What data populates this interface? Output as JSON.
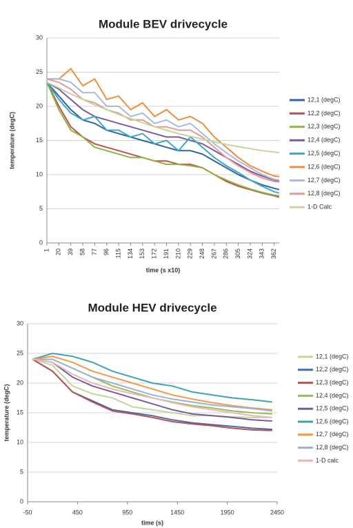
{
  "chart_data": [
    {
      "type": "line",
      "title": "Module BEV drivecycle",
      "x_label": "time (s x10)",
      "y_label": "temperature (degC)",
      "x": [
        1,
        20,
        39,
        58,
        77,
        96,
        115,
        134,
        153,
        172,
        191,
        210,
        229,
        248,
        267,
        286,
        305,
        324,
        343,
        362,
        370
      ],
      "xlim": [
        1,
        370
      ],
      "xticks": [
        1,
        20,
        39,
        58,
        77,
        96,
        115,
        134,
        153,
        172,
        191,
        210,
        229,
        248,
        267,
        286,
        305,
        324,
        343,
        362
      ],
      "ylim": [
        0,
        30
      ],
      "yticks": [
        0,
        5,
        10,
        15,
        20,
        25,
        30
      ],
      "grid": true,
      "legend": "right",
      "series": [
        {
          "name": "12,1 (degC)",
          "color": "#2e64a6",
          "values": [
            23.5,
            21.5,
            19.5,
            18,
            17.5,
            16.5,
            16,
            15.5,
            15,
            14.5,
            14,
            13.5,
            13.5,
            13,
            12,
            11,
            10,
            9.2,
            8.5,
            8,
            7.8
          ]
        },
        {
          "name": "12,2 (degC)",
          "color": "#c0504d",
          "values": [
            23.5,
            20,
            17,
            15.5,
            14.5,
            14,
            13.5,
            13,
            12.5,
            12,
            12,
            11.5,
            11.5,
            11,
            10,
            9,
            8.3,
            7.8,
            7.3,
            6.9,
            6.7
          ]
        },
        {
          "name": "12,3 (degC)",
          "color": "#8db340",
          "values": [
            23.5,
            19.5,
            16.5,
            15.5,
            14,
            13.5,
            13,
            12.5,
            12.5,
            12,
            11.5,
            11.5,
            11.3,
            11,
            10,
            9.2,
            8.5,
            7.9,
            7.4,
            7,
            6.9
          ]
        },
        {
          "name": "12,4 (degC)",
          "color": "#7a5a9e",
          "values": [
            23.5,
            22.5,
            21,
            19.5,
            18.5,
            18,
            17.5,
            17,
            16.5,
            16,
            15.5,
            15.5,
            15,
            14.5,
            13.5,
            12.5,
            11.5,
            10.5,
            9.8,
            9.2,
            9
          ]
        },
        {
          "name": "12,5 (degC)",
          "color": "#3ca8c4",
          "values": [
            23.5,
            21,
            19,
            18,
            18.5,
            16.5,
            16.5,
            15.5,
            16,
            14.5,
            15,
            13.5,
            15.5,
            14,
            12.5,
            11.3,
            10.3,
            9.2,
            8.3,
            7.5,
            7.3
          ]
        },
        {
          "name": "12,6 (degC)",
          "color": "#f08c3a",
          "values": [
            24,
            24,
            25.5,
            23,
            24,
            21,
            21.5,
            19.5,
            20.5,
            18.5,
            19.5,
            18,
            18.5,
            17.5,
            15.5,
            14,
            12.5,
            11.3,
            10.5,
            9.8,
            9.7
          ]
        },
        {
          "name": "12,7 (degC)",
          "color": "#a5b9e0",
          "values": [
            24,
            24,
            23.5,
            22,
            22,
            20,
            20,
            18.5,
            19,
            17.5,
            18,
            17,
            17.5,
            16,
            14.5,
            13.2,
            12,
            11,
            10,
            9.3,
            9.2
          ]
        },
        {
          "name": "12,8 (degC)",
          "color": "#e39a97",
          "values": [
            24,
            23.5,
            22.5,
            21,
            20.5,
            19.5,
            19,
            18,
            18,
            17,
            17,
            16.5,
            16.5,
            15.5,
            14,
            12.5,
            11.3,
            10.3,
            9.5,
            9,
            8.9
          ]
        },
        {
          "name": "1-D Calc",
          "color": "#c3d69b",
          "values": [
            23.5,
            22.7,
            21.8,
            21,
            20.2,
            19.5,
            18.8,
            18.2,
            17.6,
            17,
            16.5,
            16,
            15.6,
            15.2,
            14.8,
            14.4,
            14.1,
            13.8,
            13.5,
            13.3,
            13.2
          ]
        }
      ]
    },
    {
      "type": "line",
      "title": "Module HEV drivecycle",
      "x_label": "time (s)",
      "y_label": "temperature (degC)",
      "x": [
        0,
        200,
        400,
        600,
        800,
        1000,
        1200,
        1400,
        1600,
        1800,
        2000,
        2200,
        2400
      ],
      "xlim": [
        -50,
        2450
      ],
      "xticks": [
        -50,
        450,
        950,
        1450,
        1950,
        2450
      ],
      "ylim": [
        0,
        30
      ],
      "yticks": [
        0,
        5,
        10,
        15,
        20,
        25,
        30
      ],
      "grid": true,
      "legend": "right",
      "series": [
        {
          "name": "12,1 (degC)",
          "color": "#c3d69b",
          "values": [
            24,
            23,
            19.5,
            18.2,
            17.5,
            16,
            15.5,
            15,
            14.5,
            14.5,
            14.3,
            14.2,
            14.2
          ]
        },
        {
          "name": "12,2 (degC)",
          "color": "#3f6fae",
          "values": [
            24,
            22,
            18.5,
            17,
            15.5,
            15,
            14.5,
            13.8,
            13.3,
            13,
            12.7,
            12.4,
            12.2
          ]
        },
        {
          "name": "12,3 (degC)",
          "color": "#c0504d",
          "values": [
            24,
            22,
            18.5,
            16.8,
            15.3,
            14.8,
            14.2,
            13.5,
            13.1,
            12.8,
            12.4,
            12.1,
            12
          ]
        },
        {
          "name": "12,4 (degC)",
          "color": "#9bbb59",
          "values": [
            24,
            24,
            22.5,
            21,
            19.5,
            18.5,
            17.5,
            16.8,
            16.2,
            15.8,
            15.3,
            15,
            14.8
          ]
        },
        {
          "name": "12,5 (degC)",
          "color": "#7a5a9e",
          "values": [
            24,
            23.5,
            21,
            19.5,
            18.5,
            17.5,
            16.5,
            15.5,
            14.8,
            14.5,
            14.2,
            13.8,
            13.6
          ]
        },
        {
          "name": "12,6 (degC)",
          "color": "#3ca0b8",
          "values": [
            24,
            25,
            24.5,
            23.5,
            22,
            21,
            20,
            19.5,
            18.5,
            18,
            17.5,
            17.2,
            16.8
          ]
        },
        {
          "name": "12,7 (degC)",
          "color": "#f79646",
          "values": [
            24,
            24.5,
            23.5,
            22,
            21,
            20,
            19,
            18,
            17.3,
            16.7,
            16.2,
            15.8,
            15.5
          ]
        },
        {
          "name": "12,8 (degC)",
          "color": "#95b3d7",
          "values": [
            24,
            24,
            22.5,
            21,
            20,
            19,
            18,
            17.3,
            16.8,
            16.3,
            16,
            15.7,
            15.3
          ]
        },
        {
          "name": "1-D calc",
          "color": "#e6b9b8",
          "values": [
            24,
            23.5,
            21.5,
            20,
            19,
            18.2,
            17.5,
            16.7,
            16,
            15.5,
            15,
            14.5,
            14.2
          ]
        }
      ]
    }
  ]
}
